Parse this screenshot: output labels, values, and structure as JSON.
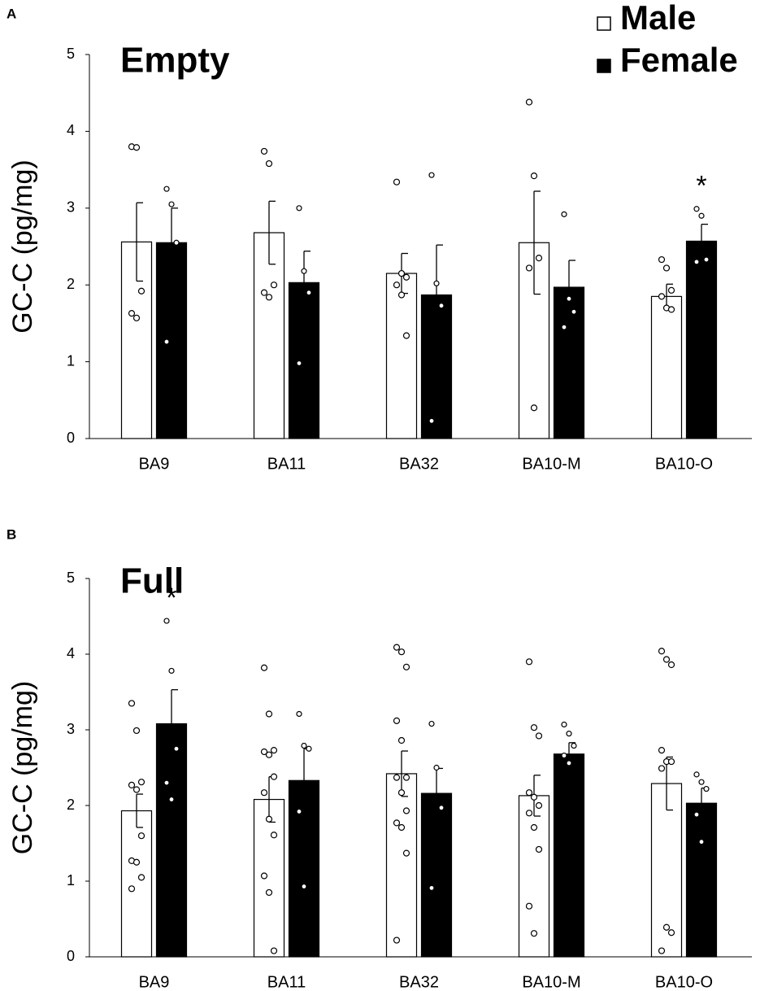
{
  "chart_data": [
    {
      "type": "bar",
      "panel": "A",
      "title": "Empty",
      "y_label": "GC-C (pg/mg)",
      "categories": [
        "BA9",
        "BA11",
        "BA32",
        "BA10-M",
        "BA10-O"
      ],
      "ylim": [
        0,
        5
      ],
      "yticks": [
        0,
        1,
        2,
        3,
        4,
        5
      ],
      "legend": "upper right",
      "series": [
        {
          "name": "Male",
          "color": "#ffffff",
          "values": [
            2.56,
            2.68,
            2.15,
            2.55,
            1.85
          ],
          "errors": [
            0.51,
            0.41,
            0.26,
            0.67,
            0.16
          ],
          "points": [
            [
              3.8,
              3.79,
              1.92,
              1.63,
              1.57
            ],
            [
              3.74,
              3.58,
              2.0,
              1.9,
              1.84
            ],
            [
              3.34,
              2.15,
              2.1,
              2.0,
              1.87,
              1.34
            ],
            [
              4.38,
              3.42,
              2.35,
              2.22,
              0.4
            ],
            [
              2.33,
              2.22,
              1.93,
              1.85,
              1.7,
              1.68
            ]
          ]
        },
        {
          "name": "Female",
          "color": "#000000",
          "values": [
            2.55,
            2.03,
            1.87,
            1.97,
            2.57
          ],
          "errors": [
            0.45,
            0.41,
            0.65,
            0.35,
            0.22
          ],
          "points": [
            [
              3.25,
              3.05,
              2.55,
              1.26
            ],
            [
              3.0,
              2.18,
              1.9,
              0.98
            ],
            [
              3.43,
              2.02,
              1.73,
              0.23
            ],
            [
              2.92,
              1.82,
              1.65,
              1.45
            ],
            [
              2.99,
              2.9,
              2.33,
              2.3
            ]
          ]
        }
      ],
      "annotations": [
        {
          "text": "*",
          "category": 4,
          "series": 1
        }
      ]
    },
    {
      "type": "bar",
      "panel": "B",
      "title": "Full",
      "y_label": "GC-C (pg/mg)",
      "categories": [
        "BA9",
        "BA11",
        "BA32",
        "BA10-M",
        "BA10-O"
      ],
      "ylim": [
        0,
        5
      ],
      "yticks": [
        0,
        1,
        2,
        3,
        4,
        5
      ],
      "series": [
        {
          "color": "#ffffff",
          "values": [
            1.93,
            2.08,
            2.42,
            2.13,
            2.29
          ],
          "errors": [
            0.22,
            0.3,
            0.3,
            0.27,
            0.35
          ],
          "points": [
            [
              3.35,
              2.99,
              2.31,
              2.27,
              2.21,
              1.6,
              1.27,
              1.25,
              1.05,
              0.9
            ],
            [
              3.82,
              3.21,
              2.73,
              2.71,
              2.67,
              2.38,
              2.17,
              1.82,
              1.61,
              1.07,
              0.85,
              0.08
            ],
            [
              4.09,
              4.03,
              3.83,
              3.12,
              2.86,
              2.37,
              2.37,
              2.17,
              1.93,
              1.77,
              1.71,
              1.37,
              0.22
            ],
            [
              3.9,
              3.03,
              2.92,
              2.17,
              2.11,
              2.0,
              1.9,
              1.71,
              1.42,
              0.67,
              0.31
            ],
            [
              4.04,
              3.93,
              3.86,
              2.73,
              2.58,
              2.58,
              2.49,
              0.39,
              0.32,
              0.08
            ]
          ]
        },
        {
          "color": "#000000",
          "values": [
            3.08,
            2.33,
            2.16,
            2.68,
            2.03
          ],
          "errors": [
            0.45,
            0.42,
            0.33,
            0.15,
            0.2
          ],
          "points": [
            [
              4.44,
              3.78,
              2.75,
              2.3,
              2.08
            ],
            [
              3.21,
              2.79,
              2.75,
              1.92,
              0.93
            ],
            [
              3.08,
              2.5,
              1.97,
              0.91
            ],
            [
              3.07,
              2.95,
              2.79,
              2.66,
              2.56
            ],
            [
              2.41,
              2.31,
              2.22,
              1.88,
              1.52
            ]
          ]
        }
      ],
      "annotations": [
        {
          "text": "*",
          "category": 0,
          "series": 1
        }
      ]
    }
  ]
}
